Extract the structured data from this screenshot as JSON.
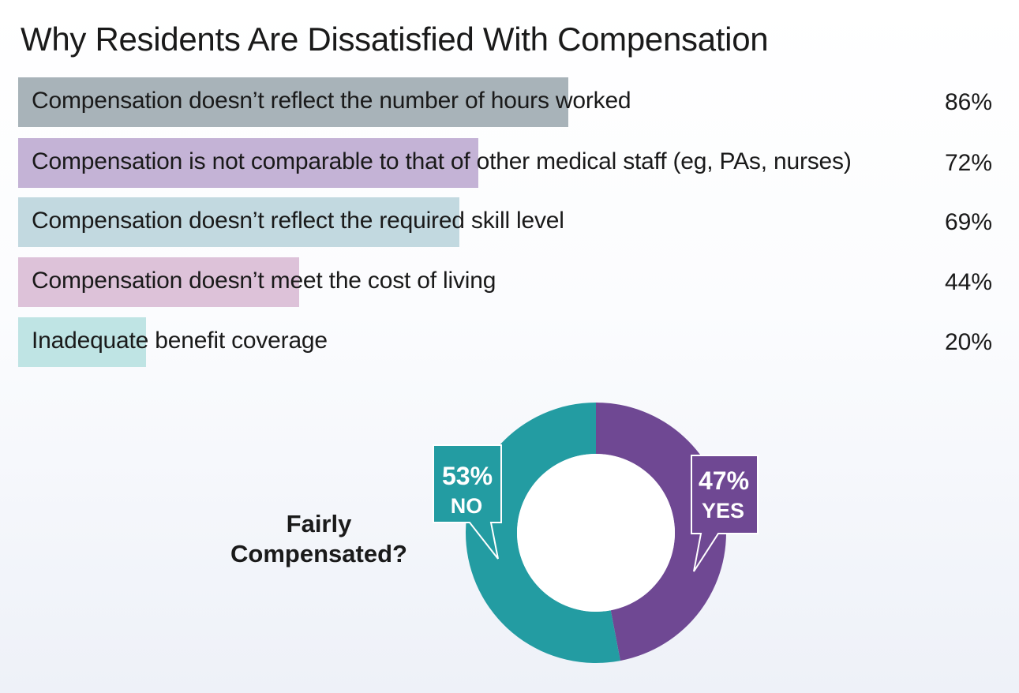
{
  "title": "Why Residents Are Dissatisfied With Compensation",
  "colors": {
    "no": "#239ca2",
    "yes": "#6f4893"
  },
  "chart_data": [
    {
      "type": "bar",
      "orientation": "horizontal",
      "title": "Why Residents Are Dissatisfied With Compensation",
      "categories": [
        "Compensation doesn’t reflect the number of hours worked",
        "Compensation is not comparable to that of other medical staff (eg, PAs, nurses)",
        "Compensation doesn’t reflect the required skill level",
        "Compensation doesn’t meet the cost of living",
        "Inadequate benefit coverage"
      ],
      "values": [
        86,
        72,
        69,
        44,
        20
      ],
      "value_labels": [
        "86%",
        "72%",
        "69%",
        "44%",
        "20%"
      ],
      "bar_colors": [
        "#a8b3b9",
        "#c4b3d6",
        "#c2d9e0",
        "#ddc2d9",
        "#bfe4e4"
      ],
      "xlim": [
        0,
        100
      ],
      "grid": false
    },
    {
      "type": "pie",
      "donut": true,
      "title_lines": [
        "Fairly",
        "Compensated?"
      ],
      "slices": [
        {
          "label": "YES",
          "value": 47,
          "value_label": "47%",
          "color": "#6f4893"
        },
        {
          "label": "NO",
          "value": 53,
          "value_label": "53%",
          "color": "#239ca2"
        }
      ]
    }
  ]
}
